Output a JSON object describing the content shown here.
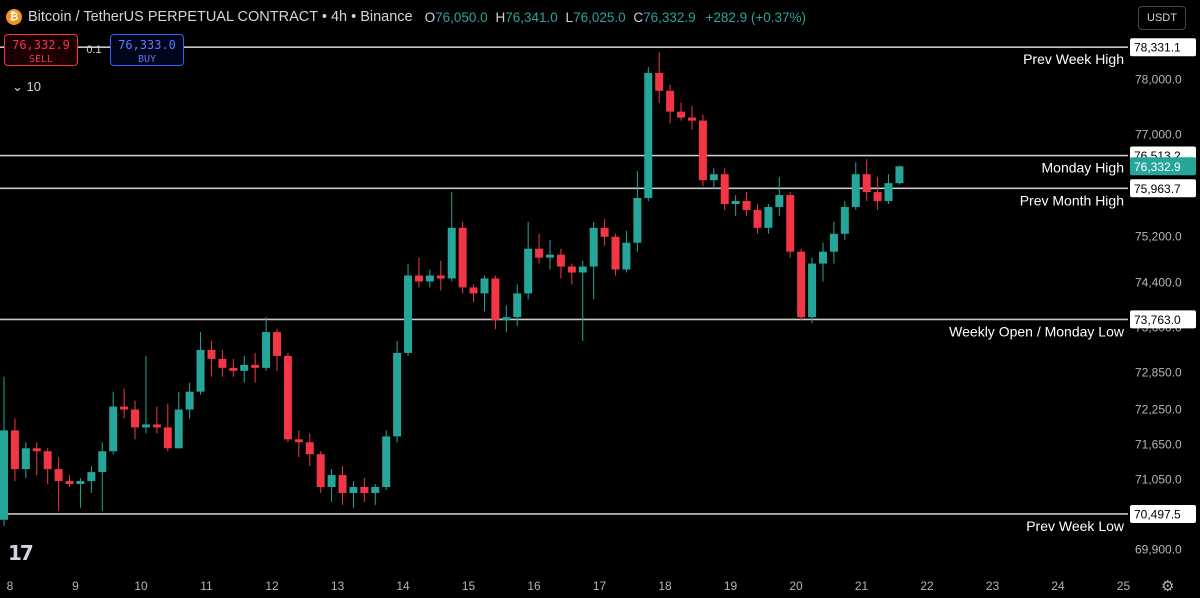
{
  "header": {
    "title": "Bitcoin / TetherUS PERPETUAL CONTRACT • 4h • Binance",
    "ohlc": [
      {
        "key": "O",
        "value": "76,050.0"
      },
      {
        "key": "H",
        "value": "76,341.0"
      },
      {
        "key": "L",
        "value": "76,025.0"
      },
      {
        "key": "C",
        "value": "76,332.9"
      }
    ],
    "change": "+282.9 (+0.37%)"
  },
  "trade_panel": {
    "sell_price": "76,332.9",
    "sell_label": "SELL",
    "quantity": "0.1",
    "buy_price": "76,333.0",
    "buy_label": "BUY"
  },
  "indicator_toggle": "10",
  "currency": "USDT",
  "colors": {
    "up": "#26a69a",
    "down": "#f23645",
    "level_line": "#c8c8c8",
    "background": "#000000",
    "last_price_bg": "#26a69a"
  },
  "chart_data": {
    "type": "candlestick",
    "timeframe": "4h",
    "x_ticks": [
      "8",
      "9",
      "10",
      "11",
      "12",
      "13",
      "14",
      "15",
      "16",
      "17",
      "18",
      "19",
      "20",
      "21",
      "22",
      "23",
      "24",
      "25"
    ],
    "y_ticks": [
      "78,000.0",
      "77,000.0",
      "75,200.0",
      "74,400.0",
      "73,600.0",
      "72,850.0",
      "72,250.0",
      "71,650.0",
      "71,050.0",
      "69,900.0"
    ],
    "last_price": "76,332.9",
    "levels": [
      {
        "label": "Prev Week High",
        "price": "78,331.1",
        "value": 78331.1
      },
      {
        "label": "Monday High",
        "price": "76,513.2",
        "value": 76513.2
      },
      {
        "label": "Prev Month High",
        "price": "75,963.7",
        "value": 75963.7
      },
      {
        "label": "Weekly Open / Monday Low",
        "price": "73,763.0",
        "value": 73763.0
      },
      {
        "label": "Prev Week Low",
        "price": "70,497.5",
        "value": 70497.5
      }
    ],
    "candles": [
      {
        "t": "8 00:00",
        "o": 70400,
        "h": 72800,
        "l": 70300,
        "c": 71900
      },
      {
        "t": "8 04:00",
        "o": 71900,
        "h": 72100,
        "l": 71050,
        "c": 71250
      },
      {
        "t": "8 08:00",
        "o": 71250,
        "h": 71700,
        "l": 71100,
        "c": 71600
      },
      {
        "t": "8 12:00",
        "o": 71600,
        "h": 71700,
        "l": 71150,
        "c": 71550
      },
      {
        "t": "8 16:00",
        "o": 71550,
        "h": 71600,
        "l": 71000,
        "c": 71250
      },
      {
        "t": "8 20:00",
        "o": 71250,
        "h": 71450,
        "l": 70550,
        "c": 71050
      },
      {
        "t": "9 00:00",
        "o": 71050,
        "h": 71150,
        "l": 70950,
        "c": 71000
      },
      {
        "t": "9 04:00",
        "o": 71000,
        "h": 71100,
        "l": 70600,
        "c": 71050
      },
      {
        "t": "9 08:00",
        "o": 71050,
        "h": 71300,
        "l": 70850,
        "c": 71200
      },
      {
        "t": "9 12:00",
        "o": 71200,
        "h": 71700,
        "l": 70550,
        "c": 71550
      },
      {
        "t": "9 16:00",
        "o": 71550,
        "h": 72550,
        "l": 71500,
        "c": 72300
      },
      {
        "t": "9 20:00",
        "o": 72300,
        "h": 72600,
        "l": 72100,
        "c": 72250
      },
      {
        "t": "10 00:00",
        "o": 72250,
        "h": 72400,
        "l": 71750,
        "c": 71950
      },
      {
        "t": "10 04:00",
        "o": 71950,
        "h": 73150,
        "l": 71850,
        "c": 72000
      },
      {
        "t": "10 08:00",
        "o": 72000,
        "h": 72300,
        "l": 71850,
        "c": 71950
      },
      {
        "t": "10 12:00",
        "o": 71950,
        "h": 72350,
        "l": 71550,
        "c": 71600
      },
      {
        "t": "10 16:00",
        "o": 71600,
        "h": 72550,
        "l": 71600,
        "c": 72250
      },
      {
        "t": "10 20:00",
        "o": 72250,
        "h": 72700,
        "l": 72100,
        "c": 72550
      },
      {
        "t": "11 00:00",
        "o": 72550,
        "h": 73550,
        "l": 72500,
        "c": 73250
      },
      {
        "t": "11 04:00",
        "o": 73250,
        "h": 73400,
        "l": 72800,
        "c": 73100
      },
      {
        "t": "11 08:00",
        "o": 73100,
        "h": 73250,
        "l": 72800,
        "c": 72950
      },
      {
        "t": "11 12:00",
        "o": 72950,
        "h": 73100,
        "l": 72800,
        "c": 72900
      },
      {
        "t": "11 16:00",
        "o": 72900,
        "h": 73150,
        "l": 72700,
        "c": 73000
      },
      {
        "t": "11 20:00",
        "o": 73000,
        "h": 73200,
        "l": 72700,
        "c": 72950
      },
      {
        "t": "12 00:00",
        "o": 72950,
        "h": 73800,
        "l": 72900,
        "c": 73550
      },
      {
        "t": "12 04:00",
        "o": 73550,
        "h": 73600,
        "l": 72900,
        "c": 73150
      },
      {
        "t": "12 08:00",
        "o": 73150,
        "h": 73200,
        "l": 71700,
        "c": 71750
      },
      {
        "t": "12 12:00",
        "o": 71750,
        "h": 71900,
        "l": 71450,
        "c": 71700
      },
      {
        "t": "12 16:00",
        "o": 71700,
        "h": 71850,
        "l": 71300,
        "c": 71500
      },
      {
        "t": "12 20:00",
        "o": 71500,
        "h": 71550,
        "l": 70850,
        "c": 70950
      },
      {
        "t": "13 00:00",
        "o": 70950,
        "h": 71250,
        "l": 70700,
        "c": 71150
      },
      {
        "t": "13 04:00",
        "o": 71150,
        "h": 71300,
        "l": 70650,
        "c": 70850
      },
      {
        "t": "13 08:00",
        "o": 70850,
        "h": 71050,
        "l": 70600,
        "c": 70950
      },
      {
        "t": "13 12:00",
        "o": 70950,
        "h": 71100,
        "l": 70700,
        "c": 70850
      },
      {
        "t": "13 16:00",
        "o": 70850,
        "h": 71000,
        "l": 70650,
        "c": 70950
      },
      {
        "t": "13 20:00",
        "o": 70950,
        "h": 71900,
        "l": 70900,
        "c": 71800
      },
      {
        "t": "14 00:00",
        "o": 71800,
        "h": 73400,
        "l": 71700,
        "c": 73200
      },
      {
        "t": "14 04:00",
        "o": 73200,
        "h": 74700,
        "l": 73150,
        "c": 74500
      },
      {
        "t": "14 08:00",
        "o": 74500,
        "h": 74800,
        "l": 74300,
        "c": 74400
      },
      {
        "t": "14 12:00",
        "o": 74400,
        "h": 74600,
        "l": 74300,
        "c": 74500
      },
      {
        "t": "14 16:00",
        "o": 74500,
        "h": 74750,
        "l": 74250,
        "c": 74450
      },
      {
        "t": "14 20:00",
        "o": 74450,
        "h": 75900,
        "l": 74400,
        "c": 75300
      },
      {
        "t": "15 00:00",
        "o": 75300,
        "h": 75400,
        "l": 74200,
        "c": 74300
      },
      {
        "t": "15 04:00",
        "o": 74300,
        "h": 74350,
        "l": 74050,
        "c": 74200
      },
      {
        "t": "15 08:00",
        "o": 74200,
        "h": 74500,
        "l": 73900,
        "c": 74450
      },
      {
        "t": "15 12:00",
        "o": 74450,
        "h": 74500,
        "l": 73600,
        "c": 73750
      },
      {
        "t": "15 16:00",
        "o": 73750,
        "h": 74000,
        "l": 73550,
        "c": 73800
      },
      {
        "t": "15 20:00",
        "o": 73800,
        "h": 74350,
        "l": 73650,
        "c": 74200
      },
      {
        "t": "16 00:00",
        "o": 74200,
        "h": 75400,
        "l": 74100,
        "c": 74950
      },
      {
        "t": "16 04:00",
        "o": 74950,
        "h": 75200,
        "l": 74700,
        "c": 74800
      },
      {
        "t": "16 08:00",
        "o": 74800,
        "h": 75100,
        "l": 74600,
        "c": 74850
      },
      {
        "t": "16 12:00",
        "o": 74850,
        "h": 74950,
        "l": 74450,
        "c": 74650
      },
      {
        "t": "16 16:00",
        "o": 74650,
        "h": 74700,
        "l": 74350,
        "c": 74550
      },
      {
        "t": "16 20:00",
        "o": 74550,
        "h": 74750,
        "l": 73400,
        "c": 74650
      },
      {
        "t": "17 00:00",
        "o": 74650,
        "h": 75400,
        "l": 74100,
        "c": 75300
      },
      {
        "t": "17 04:00",
        "o": 75300,
        "h": 75450,
        "l": 75000,
        "c": 75150
      },
      {
        "t": "17 08:00",
        "o": 75150,
        "h": 75200,
        "l": 74500,
        "c": 74600
      },
      {
        "t": "17 12:00",
        "o": 74600,
        "h": 75250,
        "l": 74550,
        "c": 75050
      },
      {
        "t": "17 16:00",
        "o": 75050,
        "h": 76250,
        "l": 74900,
        "c": 75800
      },
      {
        "t": "17 20:00",
        "o": 75800,
        "h": 78000,
        "l": 75750,
        "c": 77900
      },
      {
        "t": "18 00:00",
        "o": 77900,
        "h": 78250,
        "l": 77400,
        "c": 77600
      },
      {
        "t": "18 04:00",
        "o": 77600,
        "h": 77700,
        "l": 77050,
        "c": 77250
      },
      {
        "t": "18 08:00",
        "o": 77250,
        "h": 77400,
        "l": 77100,
        "c": 77150
      },
      {
        "t": "18 12:00",
        "o": 77150,
        "h": 77350,
        "l": 76950,
        "c": 77100
      },
      {
        "t": "18 16:00",
        "o": 77100,
        "h": 77200,
        "l": 76000,
        "c": 76100
      },
      {
        "t": "18 20:00",
        "o": 76100,
        "h": 76300,
        "l": 75950,
        "c": 76200
      },
      {
        "t": "19 00:00",
        "o": 76200,
        "h": 76300,
        "l": 75600,
        "c": 75700
      },
      {
        "t": "19 04:00",
        "o": 75700,
        "h": 75850,
        "l": 75500,
        "c": 75750
      },
      {
        "t": "19 08:00",
        "o": 75750,
        "h": 75900,
        "l": 75500,
        "c": 75600
      },
      {
        "t": "19 12:00",
        "o": 75600,
        "h": 75700,
        "l": 75200,
        "c": 75300
      },
      {
        "t": "19 16:00",
        "o": 75300,
        "h": 75700,
        "l": 75200,
        "c": 75650
      },
      {
        "t": "19 20:00",
        "o": 75650,
        "h": 76150,
        "l": 75500,
        "c": 75850
      },
      {
        "t": "20 00:00",
        "o": 75850,
        "h": 75900,
        "l": 74800,
        "c": 74900
      },
      {
        "t": "20 04:00",
        "o": 74900,
        "h": 74950,
        "l": 73750,
        "c": 73800
      },
      {
        "t": "20 08:00",
        "o": 73800,
        "h": 74800,
        "l": 73700,
        "c": 74700
      },
      {
        "t": "20 12:00",
        "o": 74700,
        "h": 75050,
        "l": 74400,
        "c": 74900
      },
      {
        "t": "20 16:00",
        "o": 74900,
        "h": 75400,
        "l": 74700,
        "c": 75200
      },
      {
        "t": "20 20:00",
        "o": 75200,
        "h": 75750,
        "l": 75100,
        "c": 75650
      },
      {
        "t": "21 00:00",
        "o": 75650,
        "h": 76400,
        "l": 75600,
        "c": 76200
      },
      {
        "t": "21 04:00",
        "o": 76200,
        "h": 76450,
        "l": 75750,
        "c": 75900
      },
      {
        "t": "21 08:00",
        "o": 75900,
        "h": 76150,
        "l": 75600,
        "c": 75750
      },
      {
        "t": "21 12:00",
        "o": 75750,
        "h": 76200,
        "l": 75700,
        "c": 76050
      },
      {
        "t": "21 16:00",
        "o": 76050,
        "h": 76341,
        "l": 76025,
        "c": 76332.9
      }
    ]
  }
}
